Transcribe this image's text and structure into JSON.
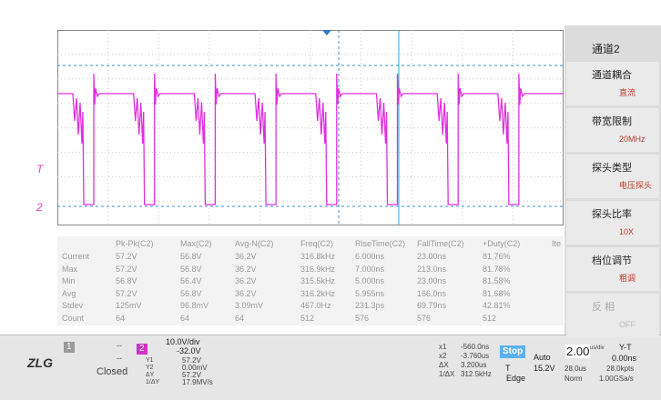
{
  "menu": {
    "title": "通道2",
    "items": [
      {
        "label": "通道耦合",
        "value": "直流"
      },
      {
        "label": "带宽限制",
        "value": "20MHz"
      },
      {
        "label": "探头类型",
        "value": "电压探头"
      },
      {
        "label": "探头比率",
        "value": "10X"
      },
      {
        "label": "档位调节",
        "value": "粗调"
      },
      {
        "label": "反 相",
        "value": "OFF"
      }
    ]
  },
  "markers": {
    "trigger": "T",
    "channel": "2"
  },
  "table": {
    "header": [
      "Pk-Pk(C2)",
      "Max(C2)",
      "Avg-N(C2)",
      "Freq(C2)",
      "RiseTime(C2)",
      "FallTime(C2)",
      "+Duty(C2)",
      "Ite"
    ],
    "rows": [
      [
        "Current",
        "57.2V",
        "56.8V",
        "36.2V",
        "316.8kHz",
        "6.000ns",
        "23.00ns",
        "81.76%"
      ],
      [
        "Max",
        "57.2V",
        "56.8V",
        "36.2V",
        "316.9kHz",
        "7.000ns",
        "213.0ns",
        "81.78%"
      ],
      [
        "Min",
        "56.8V",
        "56.4V",
        "36.2V",
        "315.5kHz",
        "5.000ns",
        "23.00ns",
        "81.58%"
      ],
      [
        "Avg",
        "57.2V",
        "56.8V",
        "36.2V",
        "316.2kHz",
        "5.955ns",
        "166.0ns",
        "81.68%"
      ],
      [
        "Stdev",
        "125mV",
        "96.8mV",
        "3.09mV",
        "467.0Hz",
        "231.3ps",
        "69.79ns",
        "42.81%"
      ],
      [
        "Count",
        "64",
        "64",
        "64",
        "512",
        "576",
        "576",
        "512"
      ]
    ]
  },
  "status": {
    "logo": "ZLG",
    "ch1": "1",
    "ch1_state": "--",
    "ch2": "2",
    "ch2_state": "--",
    "closed": "Closed",
    "vdiv": "10.0V/div",
    "offset": "-32.0V",
    "ycursors": [
      [
        "Y1",
        "57.2V"
      ],
      [
        "Y2",
        "0.00mV"
      ],
      [
        "ΔY",
        "57.2V"
      ],
      [
        "1/ΔY",
        "17.9MV/s"
      ]
    ],
    "xcursors": [
      [
        "x1",
        "-560.0ns"
      ],
      [
        "x2",
        "-3.760us"
      ],
      [
        "ΔX",
        "3.200us"
      ],
      [
        "1/ΔX",
        "312.5kHz"
      ]
    ],
    "run": "Stop",
    "trig_mode": "Auto",
    "trig_label": "T",
    "trig_level": "15.2V",
    "trig_type": "Edge",
    "timebase": "2.00",
    "timebase_unit": "us/div",
    "mode": "Y-T",
    "delay": "0.00ns",
    "span": "28.0us",
    "points": "28.0kpts",
    "acq": "Norm",
    "rate": "1.00GSa/s"
  }
}
